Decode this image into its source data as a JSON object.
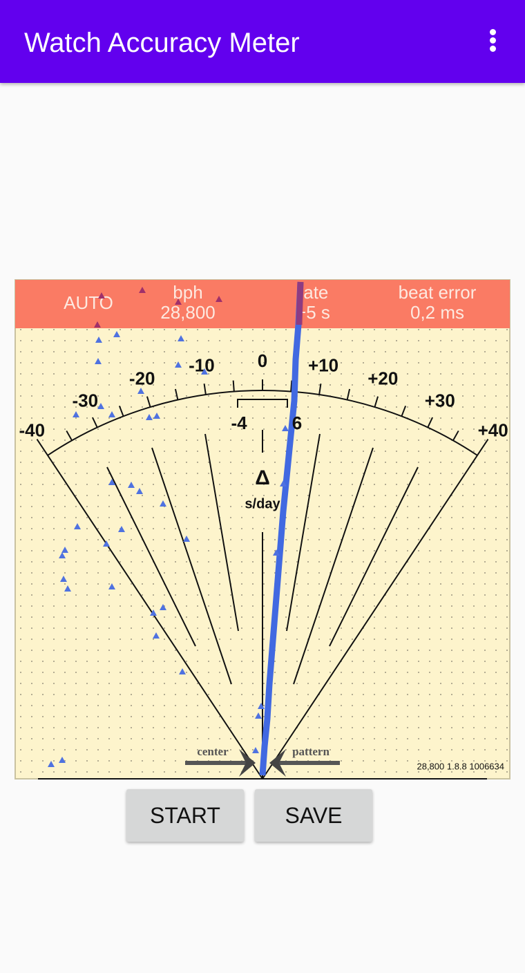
{
  "app_bar": {
    "title": "Watch Accuracy Meter"
  },
  "status": {
    "mode": "AUTO",
    "bph_label": "bph",
    "bph": "28,800",
    "rate_label": "rate",
    "rate": "+5 s",
    "beat_error_label": "beat error",
    "beat_error": "0,2 ms"
  },
  "dial": {
    "scale_labels": [
      "-40",
      "-30",
      "-20",
      "-10",
      "0",
      "+10",
      "+20",
      "+30",
      "+40"
    ],
    "window_labels": [
      "-4",
      "6"
    ],
    "delta": "Δ",
    "unit": "s/day",
    "center": "center",
    "pattern": "pattern",
    "version": "28,800 1.8.8 1006634"
  },
  "buttons": [
    "START",
    "SAVE"
  ]
}
